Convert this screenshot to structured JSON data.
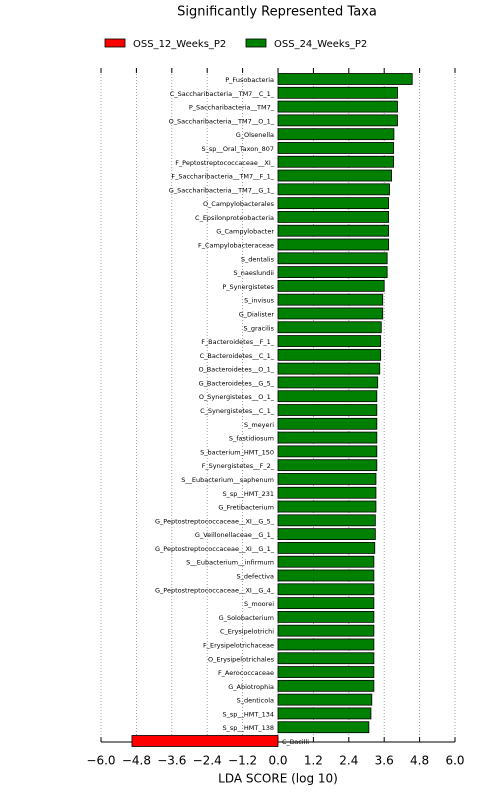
{
  "chart_data": {
    "type": "bar",
    "orientation": "horizontal",
    "title": "Significantly Represented Taxa",
    "xlabel": "LDA SCORE (log 10)",
    "categories": [
      "P_Fusobacteria",
      "C_Saccharibacteria__TM7__C_1_",
      "P_Saccharibacteria__TM7_",
      "O_Saccharibacteria__TM7__O_1_",
      "G_Olsenella",
      "S_sp__Oral_Taxon_807",
      "F_Peptostreptococcaceae__XI_",
      "F_Saccharibacteria__TM7__F_1_",
      "G_Saccharibacteria__TM7__G_1_",
      "O_Campylobacterales",
      "C_Epsilonproteobacteria",
      "G_Campylobacter",
      "F_Campylobacteraceae",
      "S_dentalis",
      "S_naeslundii",
      "P_Synergistetes",
      "S_invisus",
      "G_Dialister",
      "S_gracilis",
      "F_Bacteroidetes__F_1_",
      "C_Bacteroidetes__C_1_",
      "O_Bacteroidetes__O_1_",
      "G_Bacteroidetes__G_5_",
      "O_Synergistetes__O_1_",
      "C_Synergistetes__C_1_",
      "S_meyeri",
      "S_fastidiosum",
      "S_bacterium_HMT_150",
      "F_Synergistetes__F_2_",
      "S__Eubacterium__saphenum",
      "S_sp__HMT_231",
      "G_Fretibacterium",
      "G_Peptostreptococcaceae__XI__G_5_",
      "G_Veillonellaceae__G_1_",
      "G_Peptostreptococcaceae__XI__G_1_",
      "S__Eubacterium__infirmum",
      "S_defectiva",
      "G_Peptostreptococcaceae__XI__G_4_",
      "S_moorei",
      "G_Solobacterium",
      "C_Erysipelotrichi",
      "F_Erysipelotrichaceae",
      "O_Erysipelotrichales",
      "F_Aerococcaceae",
      "G_Abiotrophia",
      "S_denticola",
      "S_sp__HMT_134",
      "S_sp__HMT_138",
      "C_Bacilli"
    ],
    "series": [
      {
        "name": "OSS_12_Weeks_P2",
        "color": "#ff0000",
        "values": [
          null,
          null,
          null,
          null,
          null,
          null,
          null,
          null,
          null,
          null,
          null,
          null,
          null,
          null,
          null,
          null,
          null,
          null,
          null,
          null,
          null,
          null,
          null,
          null,
          null,
          null,
          null,
          null,
          null,
          null,
          null,
          null,
          null,
          null,
          null,
          null,
          null,
          null,
          null,
          null,
          null,
          null,
          null,
          null,
          null,
          null,
          null,
          null,
          -4.95
        ]
      },
      {
        "name": "OSS_24_Weeks_P2",
        "color": "#008000",
        "values": [
          4.55,
          4.05,
          4.05,
          4.05,
          3.93,
          3.92,
          3.92,
          3.85,
          3.78,
          3.75,
          3.75,
          3.75,
          3.75,
          3.7,
          3.7,
          3.6,
          3.55,
          3.55,
          3.5,
          3.48,
          3.48,
          3.45,
          3.38,
          3.35,
          3.35,
          3.35,
          3.35,
          3.35,
          3.35,
          3.32,
          3.32,
          3.32,
          3.3,
          3.3,
          3.28,
          3.25,
          3.25,
          3.25,
          3.25,
          3.25,
          3.25,
          3.25,
          3.25,
          3.25,
          3.25,
          3.18,
          3.15,
          3.08,
          null
        ]
      }
    ],
    "xlim": [
      -6,
      6
    ],
    "xticks": [
      {
        "value": -6,
        "label": "−6.0"
      },
      {
        "value": -4.8,
        "label": "−4.8"
      },
      {
        "value": -3.6,
        "label": "−3.6"
      },
      {
        "value": -2.4,
        "label": "−2.4"
      },
      {
        "value": -1.2,
        "label": "−1.2"
      },
      {
        "value": 0,
        "label": "0.0"
      },
      1.2,
      2.4,
      3.6,
      4.8,
      {
        "value": 6,
        "label": "6.0"
      }
    ],
    "grid": true
  }
}
